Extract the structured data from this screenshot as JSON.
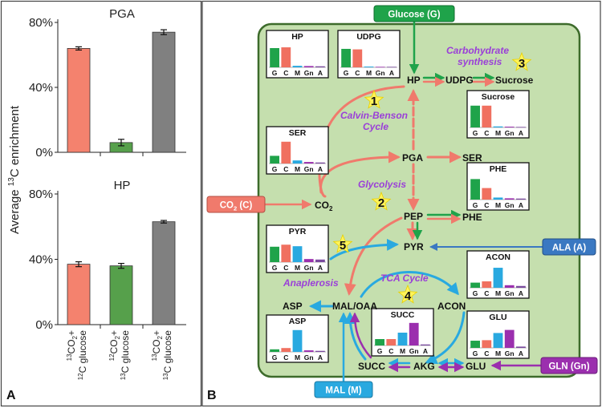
{
  "panel_a": {
    "letter": "A",
    "ylabel_prefix": "Average ",
    "ylabel_sup": "13",
    "ylabel_suffix": "C enrichment",
    "ticks": [
      "0%",
      "40%",
      "80%"
    ],
    "xcat_lines": [
      [
        "13",
        "CO",
        "2",
        "+",
        "12",
        "C glucose"
      ],
      [
        "12",
        "CO",
        "2",
        "+",
        "13",
        "C glucose"
      ],
      [
        "13",
        "CO",
        "2",
        "+",
        "13",
        "C glucose"
      ]
    ]
  },
  "chart_data": [
    {
      "type": "bar",
      "title": "PGA",
      "categories": [
        "13CO2+ 12C glucose",
        "12CO2+ 13C glucose",
        "13CO2+ 13C glucose"
      ],
      "values": [
        64,
        6,
        74
      ],
      "errors": [
        1,
        2,
        1.5
      ],
      "colors": [
        "#f4826e",
        "#56a04b",
        "#808080"
      ],
      "ylim": [
        0,
        80
      ]
    },
    {
      "type": "bar",
      "title": "HP",
      "categories": [
        "13CO2+ 12C glucose",
        "12CO2+ 13C glucose",
        "13CO2+ 13C glucose"
      ],
      "values": [
        37,
        36,
        63
      ],
      "errors": [
        1.5,
        1.5,
        0.8
      ],
      "colors": [
        "#f4826e",
        "#56a04b",
        "#808080"
      ],
      "ylim": [
        0,
        80
      ]
    }
  ],
  "panel_b": {
    "letter": "B",
    "mini_axis": [
      "G",
      "C",
      "M",
      "Gn",
      "A"
    ],
    "mini_colors": [
      "#1fa34a",
      "#f07060",
      "#29a9e0",
      "#9b2fae",
      "#7a4a9e"
    ],
    "mini_charts": [
      {
        "name": "HP",
        "values": [
          0.75,
          0.78,
          0.06,
          0.05,
          0.04
        ]
      },
      {
        "name": "UDPG",
        "values": [
          0.72,
          0.7,
          0.03,
          0.02,
          0.02
        ]
      },
      {
        "name": "Sucrose",
        "values": [
          0.85,
          0.85,
          0.04,
          0.03,
          0.02
        ]
      },
      {
        "name": "SER",
        "values": [
          0.3,
          0.85,
          0.12,
          0.06,
          0.04
        ]
      },
      {
        "name": "PHE",
        "values": [
          0.8,
          0.45,
          0.08,
          0.05,
          0.04
        ]
      },
      {
        "name": "PYR",
        "values": [
          0.6,
          0.68,
          0.62,
          0.12,
          0.1
        ]
      },
      {
        "name": "ACON",
        "values": [
          0.2,
          0.25,
          0.78,
          0.1,
          0.07
        ]
      },
      {
        "name": "GLU",
        "values": [
          0.28,
          0.3,
          0.58,
          0.7,
          0.05
        ]
      },
      {
        "name": "ASP",
        "values": [
          0.1,
          0.15,
          0.85,
          0.06,
          0.04
        ]
      },
      {
        "name": "SUCC",
        "values": [
          0.25,
          0.25,
          0.5,
          0.88,
          0.04
        ]
      }
    ],
    "metabolites": {
      "hp": "HP",
      "udpg": "UDPG",
      "sucrose": "Sucrose",
      "pga": "PGA",
      "ser": "SER",
      "pep": "PEP",
      "phe": "PHE",
      "pyr": "PYR",
      "co2_prefix": "CO",
      "co2_sub": "2",
      "mal_oaa": "MAL/OAA",
      "asp": "ASP",
      "acon": "ACON",
      "succ": "SUCC",
      "akg": "AKG",
      "glu": "GLU"
    },
    "inputs": {
      "glucose": "Glucose (G)",
      "co2_prefix": "CO",
      "co2_sub": "2",
      "co2_suffix": " (C)",
      "ala": "ALA (A)",
      "gln": "GLN (Gn)",
      "mal": "MAL (M)"
    },
    "input_colors": {
      "glucose": "#1fa34a",
      "co2": "#f07a6c",
      "ala": "#3a78c2",
      "gln": "#9b2fae",
      "mal": "#29a9e0"
    },
    "pathways": {
      "calvin_1": "Calvin-Benson",
      "calvin_2": "Cycle",
      "carb_1": "Carbohydrate",
      "carb_2": "synthesis",
      "glycolysis": "Glycolysis",
      "tca": "TCA Cycle",
      "anaplerosis": "Anaplerosis"
    },
    "stars": [
      "1",
      "2",
      "3",
      "4",
      "5"
    ]
  }
}
